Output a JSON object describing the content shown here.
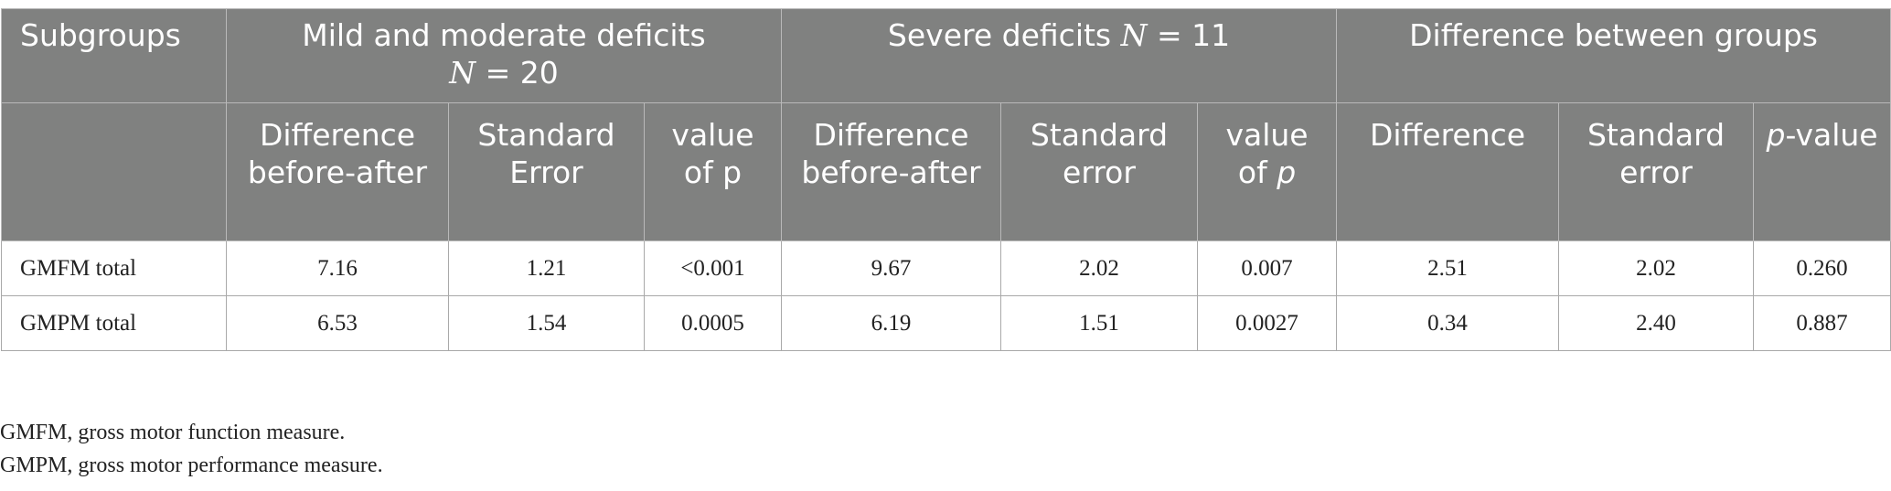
{
  "table": {
    "group_headers": {
      "subgroups": "Subgroups",
      "mild_moderate_title": "Mild and moderate deficits",
      "mild_moderate_n_var": "N",
      "mild_moderate_n_rest": " = 20",
      "severe_title": "Severe deficits ",
      "severe_n_var": "N",
      "severe_n_rest": " = 11",
      "difference_between": "Difference between groups"
    },
    "sub_headers": {
      "mm_diff": "Difference before-after",
      "mm_se": "Standard Error",
      "mm_p": "value of p",
      "sv_diff": "Difference before-after",
      "sv_se": "Standard error",
      "sv_p_prefix": "value of ",
      "sv_p_var": "p",
      "db_diff": "Difference",
      "db_se": "Standard error",
      "db_p_var": "p",
      "db_p_rest": "-value"
    },
    "rows": [
      {
        "label": "GMFM total",
        "mm_diff": "7.16",
        "mm_se": "1.21",
        "mm_p": "<0.001",
        "sv_diff": "9.67",
        "sv_se": "2.02",
        "sv_p": "0.007",
        "db_diff": "2.51",
        "db_se": "2.02",
        "db_p": "0.260"
      },
      {
        "label": "GMPM total",
        "mm_diff": "6.53",
        "mm_se": "1.54",
        "mm_p": "0.0005",
        "sv_diff": "6.19",
        "sv_se": "1.51",
        "sv_p": "0.0027",
        "db_diff": "0.34",
        "db_se": "2.40",
        "db_p": "0.887"
      }
    ]
  },
  "footnotes": [
    "GMFM, gross motor function measure.",
    "GMPM, gross motor performance measure."
  ]
}
